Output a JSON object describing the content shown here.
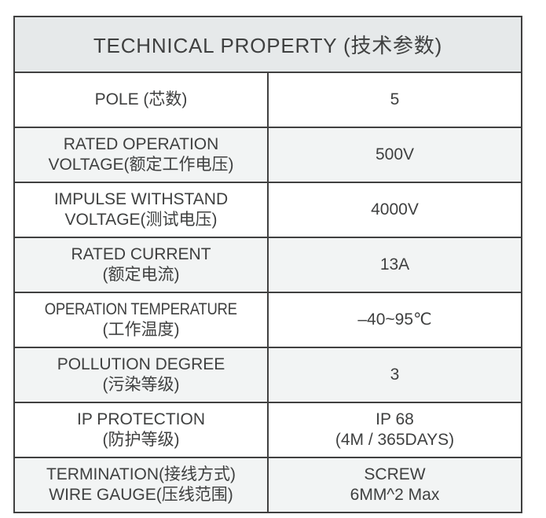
{
  "table": {
    "title": "TECHNICAL PROPERTY (技术参数)",
    "rows": [
      {
        "label_lines": [
          "POLE (芯数)"
        ],
        "value_lines": [
          "5"
        ]
      },
      {
        "label_lines": [
          "RATED OPERATION",
          "VOLTAGE(额定工作电压)"
        ],
        "value_lines": [
          "500V"
        ]
      },
      {
        "label_lines": [
          "IMPULSE WITHSTAND",
          "VOLTAGE(测试电压)"
        ],
        "value_lines": [
          "4000V"
        ]
      },
      {
        "label_lines": [
          "RATED CURRENT",
          "(额定电流)"
        ],
        "value_lines": [
          "13A"
        ]
      },
      {
        "label_lines": [
          "OPERATION TEMPERATURE",
          "(工作温度)"
        ],
        "value_lines": [
          "–40~95℃"
        ]
      },
      {
        "label_lines": [
          "POLLUTION DEGREE",
          "(污染等级)"
        ],
        "value_lines": [
          "3"
        ]
      },
      {
        "label_lines": [
          "IP PROTECTION",
          "(防护等级)"
        ],
        "value_lines": [
          "IP 68",
          "(4M / 365DAYS)"
        ]
      },
      {
        "label_lines": [
          "TERMINATION(接线方式)",
          "WIRE GAUGE(压线范围)"
        ],
        "value_lines": [
          "SCREW",
          "6MM^2 Max"
        ]
      }
    ],
    "colors": {
      "header_bg": "#e6e9ea",
      "alt_row_bg": "#f2f4f4",
      "row_bg": "#ffffff",
      "border": "#404040",
      "text": "#3f4040"
    }
  }
}
